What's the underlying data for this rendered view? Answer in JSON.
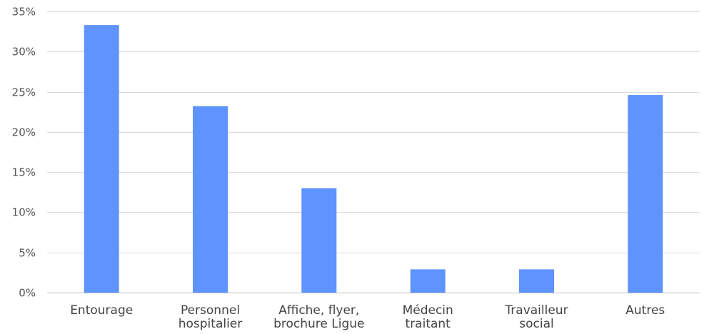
{
  "chart_data": {
    "type": "bar",
    "categories": [
      [
        "Entourage"
      ],
      [
        "Personnel",
        "hospitalier"
      ],
      [
        "Affiche, flyer,",
        "brochure Ligue"
      ],
      [
        "Médecin",
        "traitant"
      ],
      [
        "Travailleur",
        "social"
      ],
      [
        "Autres"
      ]
    ],
    "values": [
      33.3,
      23.2,
      13.0,
      2.9,
      2.9,
      24.6
    ],
    "ylim": [
      0,
      35
    ],
    "yticks": [
      0,
      5,
      10,
      15,
      20,
      25,
      30,
      35
    ],
    "ytick_labels": [
      "0%",
      "5%",
      "10%",
      "15%",
      "20%",
      "25%",
      "30%",
      "35%"
    ],
    "grid": true,
    "legend": "none",
    "title": "",
    "xlabel": "",
    "ylabel": ""
  },
  "colors": {
    "bar": "#5f93ff"
  }
}
